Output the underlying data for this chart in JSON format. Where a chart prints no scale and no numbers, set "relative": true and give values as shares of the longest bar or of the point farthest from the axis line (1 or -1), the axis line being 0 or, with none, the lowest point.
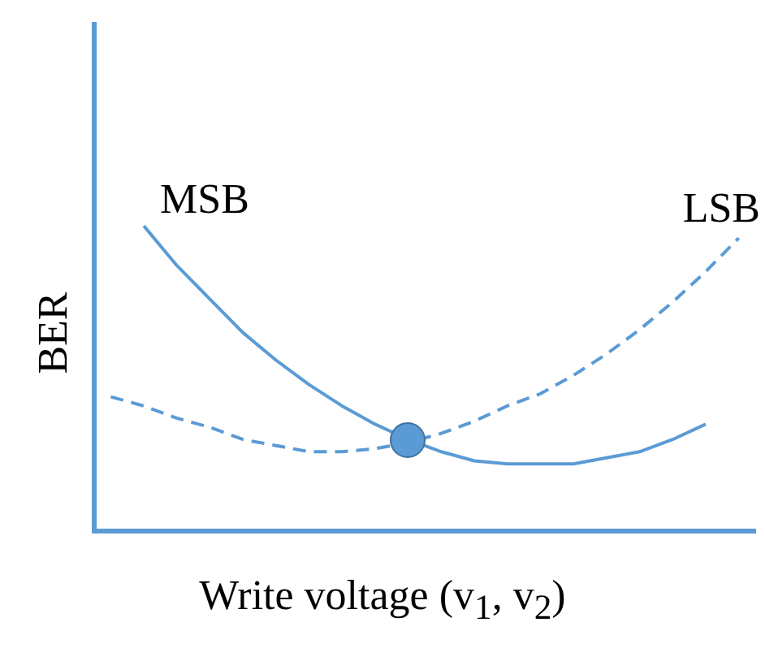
{
  "chart_data": {
    "type": "line",
    "relative": true,
    "xlabel": "Write voltage (v$_{1}$, v$_{2}$)",
    "ylabel": "BER",
    "categories": [
      null,
      null,
      null,
      null,
      null,
      null,
      null,
      null,
      null,
      null,
      null,
      null,
      null,
      null,
      null,
      null,
      null,
      null,
      null,
      null
    ],
    "grid": false,
    "legend": false,
    "marker": "none",
    "series": [
      {
        "name": "MSB",
        "color": "#5b9bd5",
        "line_style": "solid",
        "values": [
          null,
          1,
          0.87,
          0.76,
          0.65,
          0.56,
          0.48,
          0.41,
          0.35,
          0.3,
          0.26,
          0.23,
          0.22,
          0.22,
          0.22,
          0.24,
          0.26,
          0.3,
          0.35,
          null
        ]
      },
      {
        "name": "LSB",
        "color": "#5b9bd5",
        "line_style": "dashed",
        "values": [
          0.44,
          0.41,
          0.37,
          0.34,
          0.3,
          0.28,
          0.26,
          0.26,
          0.27,
          0.29,
          0.32,
          0.36,
          0.41,
          0.45,
          0.51,
          0.58,
          0.66,
          0.75,
          0.85,
          0.96
        ]
      }
    ]
  }
}
